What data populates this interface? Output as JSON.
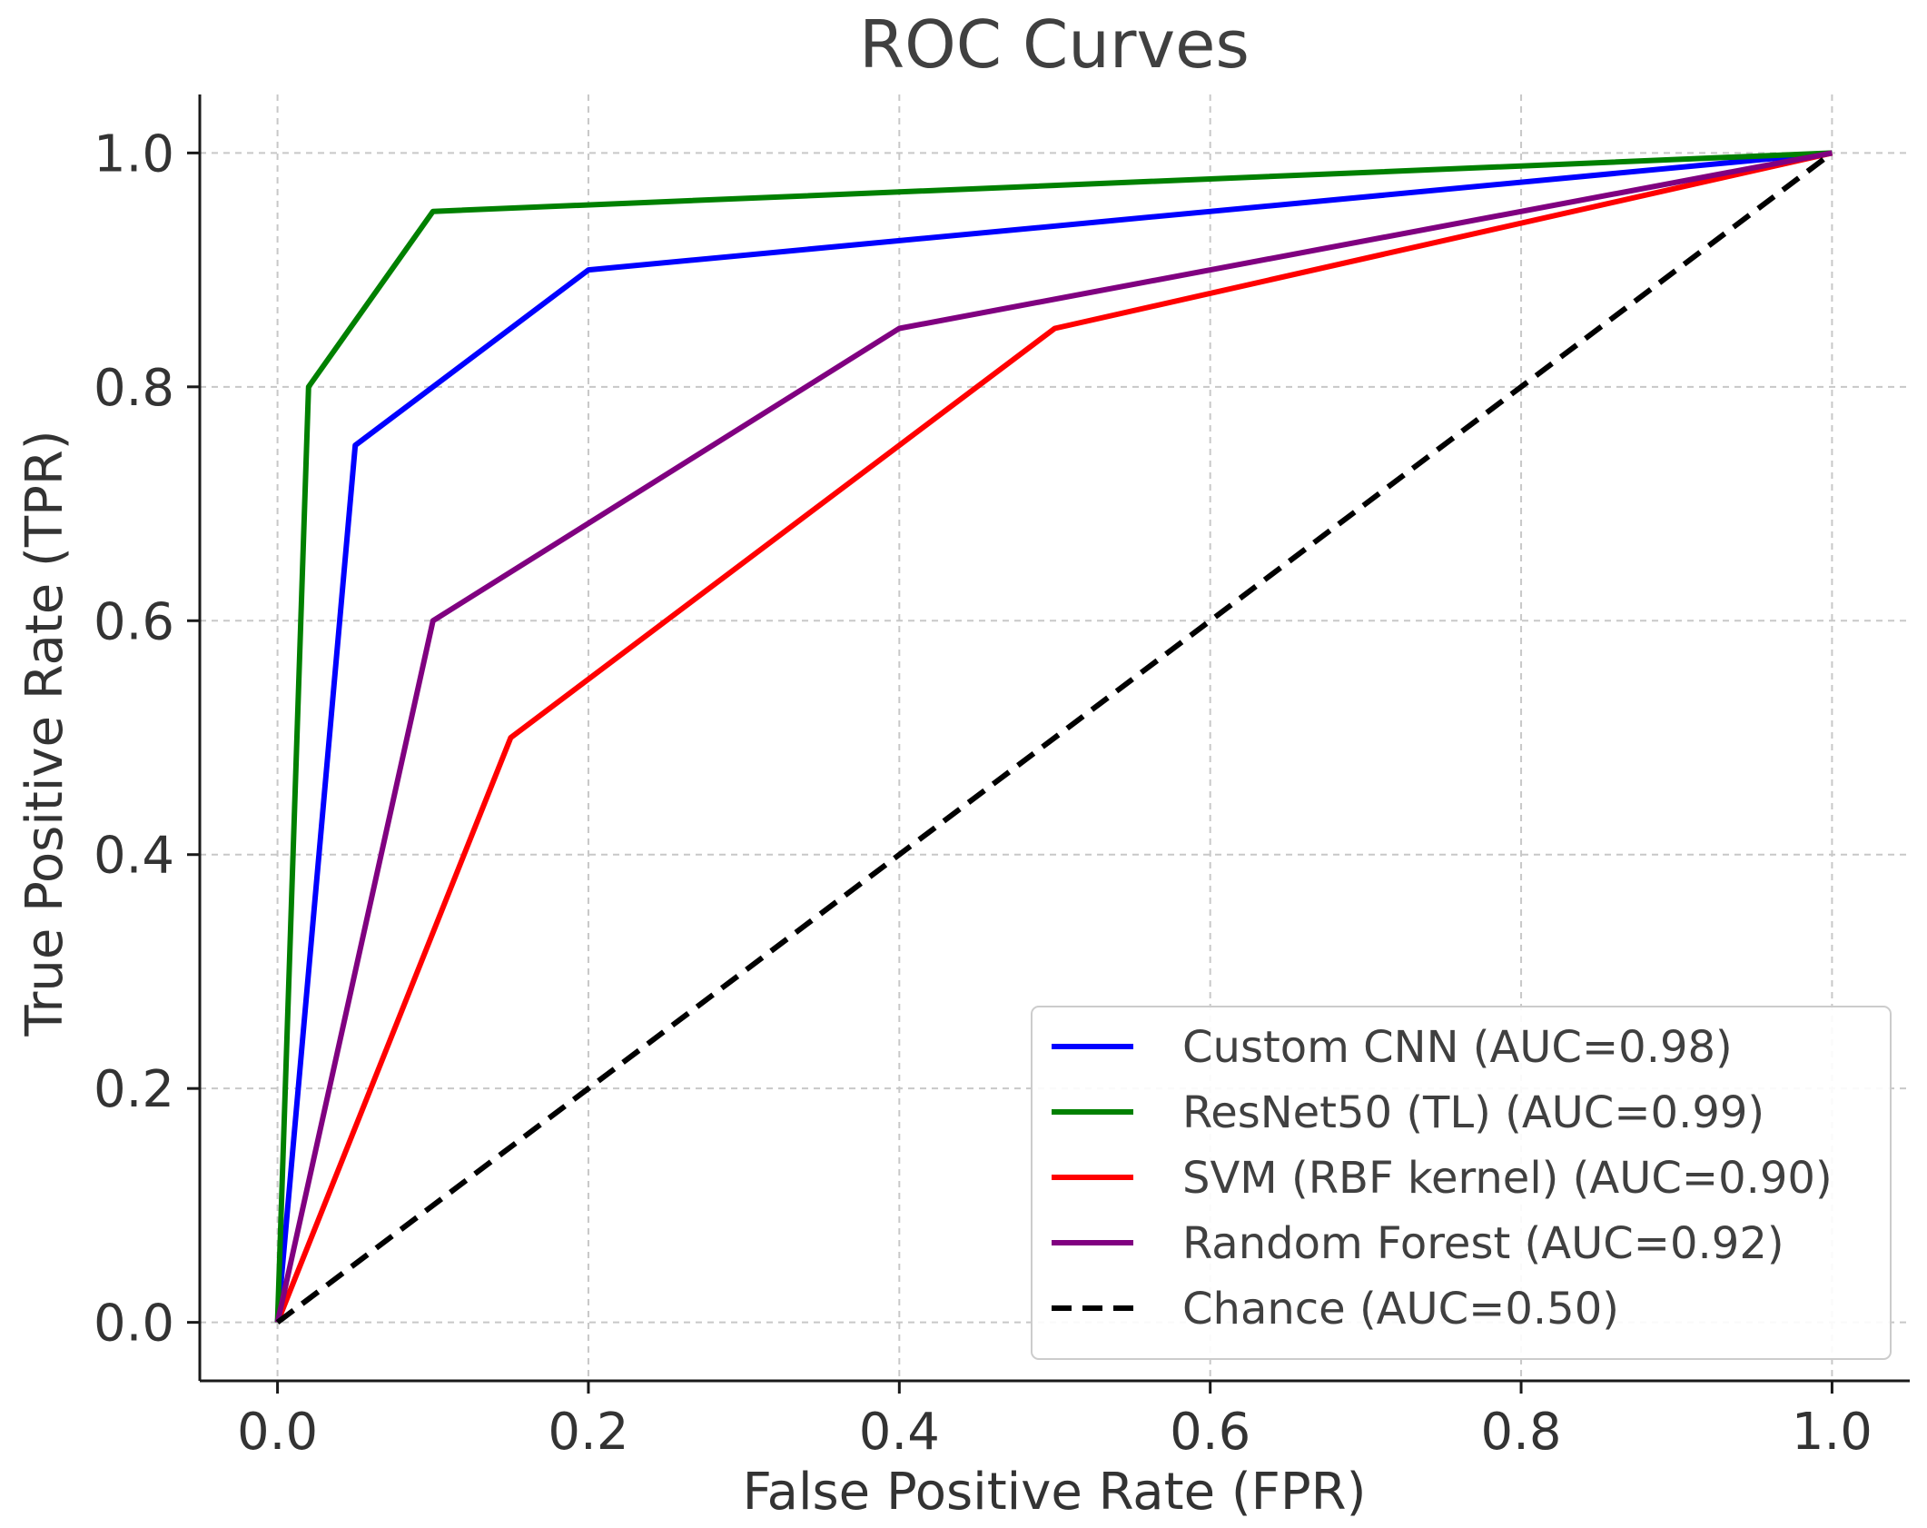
{
  "chart_data": {
    "type": "line",
    "title": "ROC Curves",
    "xlabel": "False Positive Rate (FPR)",
    "ylabel": "True Positive Rate (TPR)",
    "xlim": [
      -0.05,
      1.05
    ],
    "ylim": [
      -0.05,
      1.05
    ],
    "xticks": [
      "0.0",
      "0.2",
      "0.4",
      "0.6",
      "0.8",
      "1.0"
    ],
    "yticks": [
      "0.0",
      "0.2",
      "0.4",
      "0.6",
      "0.8",
      "1.0"
    ],
    "grid": true,
    "legend_position": "lower-right",
    "series": [
      {
        "name": "Custom CNN (AUC=0.98)",
        "color": "#0000ff",
        "dashed": false,
        "x": [
          0.0,
          0.05,
          0.2,
          1.0
        ],
        "y": [
          0.0,
          0.75,
          0.9,
          1.0
        ]
      },
      {
        "name": "ResNet50 (TL) (AUC=0.99)",
        "color": "#008000",
        "dashed": false,
        "x": [
          0.0,
          0.02,
          0.1,
          1.0
        ],
        "y": [
          0.0,
          0.8,
          0.95,
          1.0
        ]
      },
      {
        "name": "SVM (RBF kernel) (AUC=0.90)",
        "color": "#ff0000",
        "dashed": false,
        "x": [
          0.0,
          0.15,
          0.5,
          1.0
        ],
        "y": [
          0.0,
          0.5,
          0.85,
          1.0
        ]
      },
      {
        "name": "Random Forest (AUC=0.92)",
        "color": "#800080",
        "dashed": false,
        "x": [
          0.0,
          0.1,
          0.4,
          1.0
        ],
        "y": [
          0.0,
          0.6,
          0.85,
          1.0
        ]
      },
      {
        "name": "Chance (AUC=0.50)",
        "color": "#000000",
        "dashed": true,
        "x": [
          0.0,
          1.0
        ],
        "y": [
          0.0,
          1.0
        ]
      }
    ]
  }
}
